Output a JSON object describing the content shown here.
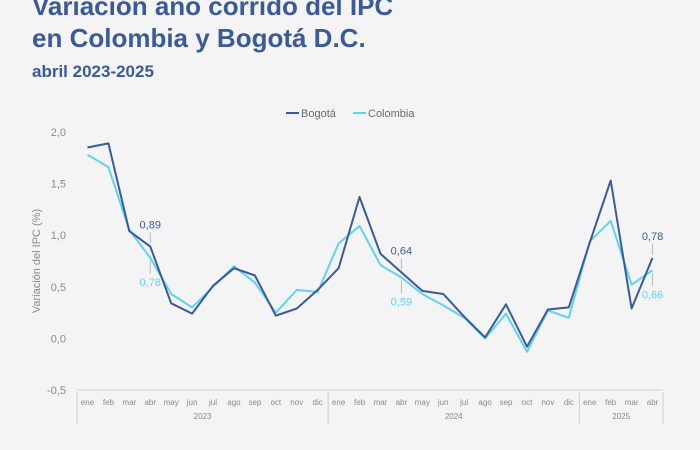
{
  "header": {
    "title_line1": "Variación año corrido del IPC",
    "title_line2": "en Colombia y Bogotá D.C.",
    "subtitle": "abril 2023-2025"
  },
  "colors": {
    "bogota": "#3a5a9a",
    "colombia": "#5fd3f3",
    "title": "#3a5a9a",
    "axis_text": "#8a8a8a",
    "grid": "#cfcfcf"
  },
  "chart_data": {
    "type": "line",
    "ylabel": "Variación del IPC (%)",
    "xlabel": "",
    "ylim": [
      -0.5,
      2.0
    ],
    "yticks": [
      -0.5,
      0.0,
      0.5,
      1.0,
      1.5,
      2.0
    ],
    "ytick_labels": [
      "-0,5",
      "0,0",
      "0,5",
      "1,0",
      "1,5",
      "2,0"
    ],
    "grid": false,
    "legend_position": "top-center",
    "categories": [
      "ene",
      "feb",
      "mar",
      "abr",
      "may",
      "jun",
      "jul",
      "ago",
      "sep",
      "oct",
      "nov",
      "dic",
      "ene",
      "feb",
      "mar",
      "abr",
      "may",
      "jun",
      "jul",
      "ago",
      "sep",
      "oct",
      "nov",
      "dic",
      "ene",
      "feb",
      "mar",
      "abr"
    ],
    "year_groups": [
      {
        "label": "2023",
        "start": 0,
        "end": 11
      },
      {
        "label": "2024",
        "start": 12,
        "end": 23
      },
      {
        "label": "2025",
        "start": 24,
        "end": 27
      }
    ],
    "series": [
      {
        "name": "Bogotá",
        "values": [
          1.85,
          1.89,
          1.04,
          0.89,
          0.34,
          0.24,
          0.51,
          0.68,
          0.61,
          0.22,
          0.29,
          0.47,
          0.68,
          1.37,
          0.82,
          0.64,
          0.46,
          0.43,
          0.21,
          0.01,
          0.33,
          -0.08,
          0.28,
          0.3,
          0.93,
          1.53,
          0.29,
          0.78
        ]
      },
      {
        "name": "Colombia",
        "values": [
          1.78,
          1.66,
          1.05,
          0.78,
          0.43,
          0.3,
          0.5,
          0.7,
          0.54,
          0.25,
          0.47,
          0.45,
          0.92,
          1.09,
          0.71,
          0.59,
          0.43,
          0.32,
          0.2,
          0.0,
          0.24,
          -0.13,
          0.27,
          0.2,
          0.94,
          1.14,
          0.52,
          0.66
        ]
      }
    ],
    "annotations": [
      {
        "series": "Bogotá",
        "index": 3,
        "text": "0,89",
        "placement": "above"
      },
      {
        "series": "Colombia",
        "index": 3,
        "text": "0,78",
        "placement": "below"
      },
      {
        "series": "Bogotá",
        "index": 15,
        "text": "0,64",
        "placement": "above"
      },
      {
        "series": "Colombia",
        "index": 15,
        "text": "0,59",
        "placement": "below"
      },
      {
        "series": "Bogotá",
        "index": 27,
        "text": "0,78",
        "placement": "above"
      },
      {
        "series": "Colombia",
        "index": 27,
        "text": "0,66",
        "placement": "below"
      }
    ]
  }
}
